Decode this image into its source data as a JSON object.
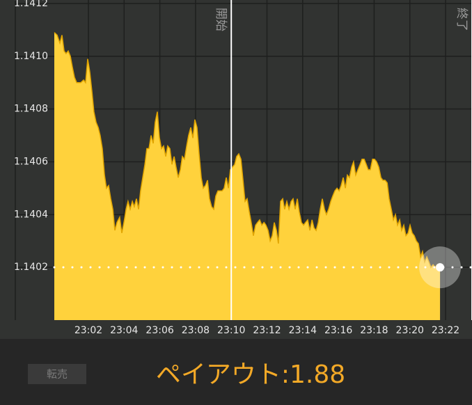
{
  "chart_data": {
    "type": "area",
    "x": [
      1380.09,
      1380.25,
      1380.4,
      1380.52,
      1380.64,
      1380.75,
      1380.87,
      1380.99,
      1381.1,
      1381.22,
      1381.34,
      1381.57,
      1381.73,
      1381.84,
      1381.96,
      1382.08,
      1382.19,
      1382.31,
      1382.43,
      1382.55,
      1382.66,
      1382.78,
      1382.9,
      1383.01,
      1383.13,
      1383.25,
      1383.37,
      1383.48,
      1383.6,
      1383.75,
      1383.87,
      1383.99,
      1384.11,
      1384.22,
      1384.34,
      1384.46,
      1384.57,
      1384.69,
      1384.81,
      1384.92,
      1385.04,
      1385.16,
      1385.27,
      1385.39,
      1385.51,
      1385.63,
      1385.74,
      1385.86,
      1385.98,
      1386.09,
      1386.21,
      1386.33,
      1386.44,
      1386.56,
      1386.68,
      1386.8,
      1386.91,
      1387.03,
      1387.15,
      1387.26,
      1387.38,
      1387.5,
      1387.61,
      1387.73,
      1387.85,
      1387.96,
      1388.08,
      1388.2,
      1388.32,
      1388.43,
      1388.55,
      1388.67,
      1388.78,
      1388.9,
      1389.02,
      1389.13,
      1389.25,
      1389.49,
      1389.6,
      1389.72,
      1389.84,
      1389.95,
      1390.07,
      1390.19,
      1390.3,
      1390.42,
      1390.54,
      1390.66,
      1390.77,
      1390.89,
      1391.01,
      1391.12,
      1391.24,
      1391.36,
      1391.47,
      1391.59,
      1391.71,
      1391.83,
      1391.94,
      1392.06,
      1392.18,
      1392.29,
      1392.41,
      1392.53,
      1392.64,
      1392.76,
      1392.88,
      1392.99,
      1393.11,
      1393.23,
      1393.35,
      1393.46,
      1393.58,
      1393.7,
      1393.81,
      1393.93,
      1394.05,
      1394.16,
      1394.28,
      1394.4,
      1394.52,
      1394.63,
      1394.75,
      1394.87,
      1394.98,
      1395.1,
      1395.22,
      1395.33,
      1395.45,
      1395.57,
      1395.68,
      1395.8,
      1395.92,
      1396.04,
      1396.15,
      1396.27,
      1396.39,
      1396.5,
      1396.62,
      1396.74,
      1396.85,
      1396.97,
      1397.09,
      1397.21,
      1397.32,
      1397.44,
      1397.56,
      1397.67,
      1397.79,
      1397.91,
      1398.02,
      1398.14,
      1398.26,
      1398.38,
      1398.49,
      1398.61,
      1398.73,
      1398.84,
      1398.96,
      1399.08,
      1399.19,
      1399.31,
      1399.43,
      1399.54,
      1399.66,
      1399.78,
      1399.9,
      1400.01,
      1400.13,
      1400.25,
      1400.36,
      1400.48,
      1400.6,
      1400.71,
      1400.83,
      1400.95,
      1401.07,
      1401.18,
      1401.3,
      1401.42,
      1401.53,
      1401.69
    ],
    "values": [
      1.14109,
      1.14108,
      1.14105,
      1.14108,
      1.14102,
      1.14101,
      1.14102,
      1.141,
      1.14096,
      1.14092,
      1.1409,
      1.1409,
      1.14091,
      1.1409,
      1.14099,
      1.14094,
      1.14087,
      1.14079,
      1.14075,
      1.14073,
      1.1407,
      1.14065,
      1.14055,
      1.1405,
      1.14051,
      1.14046,
      1.14042,
      1.14034,
      1.14037,
      1.14039,
      1.14033,
      1.14037,
      1.14042,
      1.14045,
      1.14042,
      1.14045,
      1.14043,
      1.14046,
      1.14042,
      1.14049,
      1.14054,
      1.14059,
      1.14065,
      1.14065,
      1.1407,
      1.14067,
      1.14075,
      1.14079,
      1.14069,
      1.14065,
      1.14066,
      1.14062,
      1.14066,
      1.14065,
      1.14059,
      1.14062,
      1.14058,
      1.14054,
      1.14057,
      1.14062,
      1.14061,
      1.14066,
      1.1407,
      1.14073,
      1.14069,
      1.14076,
      1.14073,
      1.14063,
      1.14054,
      1.1405,
      1.14051,
      1.14053,
      1.14046,
      1.14043,
      1.14042,
      1.14047,
      1.14049,
      1.14049,
      1.1405,
      1.14054,
      1.1405,
      1.14057,
      1.14058,
      1.14059,
      1.14062,
      1.14063,
      1.14061,
      1.14053,
      1.14045,
      1.14046,
      1.14041,
      1.14037,
      1.14032,
      1.14036,
      1.14037,
      1.14038,
      1.14036,
      1.14037,
      1.14036,
      1.14034,
      1.1403,
      1.14032,
      1.14037,
      1.14034,
      1.14029,
      1.14045,
      1.14046,
      1.14042,
      1.14045,
      1.14042,
      1.14045,
      1.14046,
      1.14042,
      1.14046,
      1.14041,
      1.14037,
      1.14036,
      1.14037,
      1.14038,
      1.14034,
      1.14038,
      1.14035,
      1.14034,
      1.14037,
      1.14042,
      1.14046,
      1.14042,
      1.1404,
      1.14042,
      1.14045,
      1.14047,
      1.14049,
      1.1405,
      1.14049,
      1.14051,
      1.14054,
      1.1405,
      1.14055,
      1.14054,
      1.14058,
      1.1406,
      1.14055,
      1.14057,
      1.14059,
      1.14061,
      1.14061,
      1.14059,
      1.14057,
      1.14057,
      1.14061,
      1.14061,
      1.1406,
      1.14058,
      1.14054,
      1.14053,
      1.14053,
      1.14052,
      1.14046,
      1.14042,
      1.14038,
      1.1404,
      1.14036,
      1.14038,
      1.14034,
      1.14036,
      1.14032,
      1.14033,
      1.14036,
      1.14033,
      1.14032,
      1.1403,
      1.14029,
      1.14024,
      1.14026,
      1.14022,
      1.14024,
      1.14022,
      1.1402,
      1.14021,
      1.1402,
      1.14021,
      1.1402
    ],
    "color": "#ffd23c",
    "line_color": "#e0a400",
    "xlim": [
      1380.09,
      1403.48
    ],
    "ylim": [
      1.14,
      1.1412
    ],
    "xticks": [
      {
        "value": 1382,
        "label": "23:02"
      },
      {
        "value": 1384,
        "label": "23:04"
      },
      {
        "value": 1386,
        "label": "23:06"
      },
      {
        "value": 1388,
        "label": "23:08"
      },
      {
        "value": 1390,
        "label": "23:10"
      },
      {
        "value": 1392,
        "label": "23:12"
      },
      {
        "value": 1394,
        "label": "23:14"
      },
      {
        "value": 1396,
        "label": "23:16"
      },
      {
        "value": 1398,
        "label": "23:18"
      },
      {
        "value": 1400,
        "label": "23:20"
      },
      {
        "value": 1402,
        "label": "23:22"
      }
    ],
    "yticks": [
      1.1402,
      1.1404,
      1.1406,
      1.1408,
      {
        "value": 1.141,
        "label": "1.1410"
      },
      1.1412
    ],
    "grid": true,
    "reference_line": 1.1402,
    "annotations": [
      {
        "x": 1390,
        "label": "開始"
      },
      {
        "x": 1403.48,
        "label": "終了"
      }
    ]
  },
  "ui": {
    "resell_button": "転売",
    "payout": "ペイアウト:1.88"
  }
}
